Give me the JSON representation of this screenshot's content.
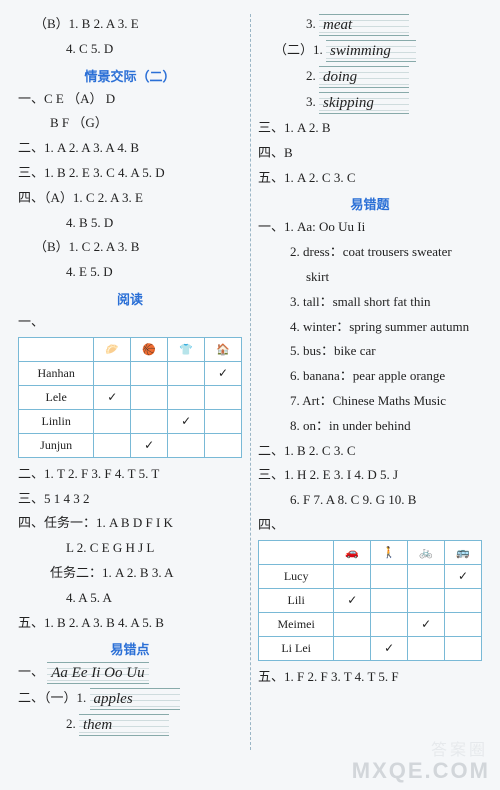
{
  "left": {
    "block1": {
      "l1": "（B）1.  B   2.  A   3.  E",
      "l2": "4.  C   5.  D"
    },
    "title1": "情景交际（二）",
    "sec1": {
      "yi1": "一、C   E  （A）  D",
      "yi2": "B   F  （G）",
      "er": "二、1.  A   2.  A   3.  A   4.  B",
      "san": "三、1.  B   2.  E   3.  C   4.  A   5.  D",
      "siA1": "四、（A）1.  C   2.  A   3.  E",
      "siA2": "4.  B   5.  D",
      "siB1": "（B）1.  C   2.  A   3.  B",
      "siB2": "4.  E   5.  D"
    },
    "title2": "阅读",
    "yi_label": "一、",
    "table1": {
      "headers": [
        "",
        "🥟",
        "🏀",
        "👕",
        "🏠"
      ],
      "rows": [
        {
          "name": "Hanhan",
          "cells": [
            "",
            "",
            "",
            "✓"
          ]
        },
        {
          "name": "Lele",
          "cells": [
            "✓",
            "",
            "",
            ""
          ]
        },
        {
          "name": "Linlin",
          "cells": [
            "",
            "",
            "✓",
            ""
          ]
        },
        {
          "name": "Junjun",
          "cells": [
            "",
            "✓",
            "",
            ""
          ]
        }
      ]
    },
    "er2": "二、1.  T   2.  F   3.  F   4.  T   5.  T",
    "san2": "三、5   1   4   3   2",
    "si2_1": "四、任务一：1.  A   B   D   F   I   K",
    "si2_2": "L  2. C  E  G  H  J  L",
    "si2_3": "任务二：1.  A   2.  B   3.  A",
    "si2_4": "4.  A   5.  A",
    "wu2": "五、1.  B   2.  A   3.  B   4.  A   5.  B",
    "title3": "易错点",
    "yc_yi_label": "一、",
    "yc_yi": "Aa Ee Ii Oo Uu",
    "yc_er_label": "二、（一）1.",
    "yc_er_1": "apples",
    "yc_er_2label": "2.",
    "yc_er_2": "them"
  },
  "right": {
    "top3label": "3.",
    "top3": "meat",
    "two_label": "（二）1.",
    "two1": "swimming",
    "two2label": "2.",
    "two2": "doing",
    "two3label": "3.",
    "two3": "skipping",
    "san": "三、1.  A   2.  B",
    "si": "四、B",
    "wu": "五、1.  A   2.  C   3.  C",
    "title4": "易错题",
    "yi": {
      "l1": "一、1.  Aa:  Oo   Uu   Ii",
      "l2": "2.  dress：coat   trousers   sweater",
      "l2b": "skirt",
      "l3": "3.  tall：small   short   fat   thin",
      "l4": "4.  winter：spring   summer   autumn",
      "l5": "5.  bus：bike   car",
      "l6": "6.  banana：pear   apple   orange",
      "l7": "7.  Art：Chinese   Maths   Music",
      "l8": "8.  on：in   under   behind"
    },
    "er2": "二、1.  B   2.  C   3.  C",
    "san2_1": "三、1.  H   2.  E   3.  I   4.  D   5.  J",
    "san2_2": "6.  F   7.  A   8.  C   9.  G   10.  B",
    "si_label": "四、",
    "table2": {
      "headers": [
        "",
        "🚗",
        "🚶",
        "🚲",
        "🚌"
      ],
      "rows": [
        {
          "name": "Lucy",
          "cells": [
            "",
            "",
            "",
            "✓"
          ]
        },
        {
          "name": "Lili",
          "cells": [
            "✓",
            "",
            "",
            ""
          ]
        },
        {
          "name": "Meimei",
          "cells": [
            "",
            "",
            "✓",
            ""
          ]
        },
        {
          "name": "Li Lei",
          "cells": [
            "",
            "✓",
            "",
            ""
          ]
        }
      ]
    },
    "wu2": "五、1.  F   2.  F   3.  T   4.  T   5.  F"
  },
  "watermark_small": "答案圈",
  "watermark": "MXQE.COM"
}
